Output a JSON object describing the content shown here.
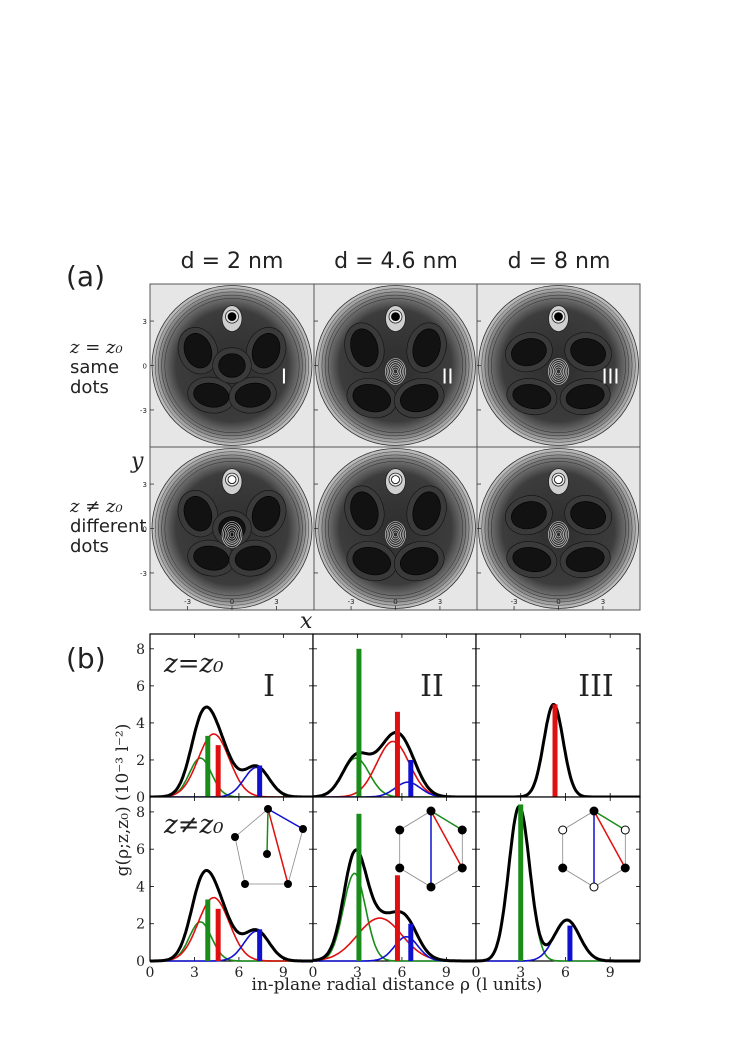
{
  "panel_a": {
    "label": "(a)",
    "columns": [
      "d = 2 nm",
      "d = 4.6 nm",
      "d = 8 nm"
    ],
    "rows": [
      {
        "line1": "z = z₀",
        "line2": "same",
        "line3": "dots"
      },
      {
        "line1": "z ≠ z₀",
        "line2": "different",
        "line3": "dots"
      }
    ],
    "roman": [
      "I",
      "II",
      "III"
    ],
    "xlabel": "x",
    "ylabel": "y",
    "ticks": [
      "-3",
      "0",
      "3"
    ]
  },
  "panel_b": {
    "label": "(b)",
    "row_labels": [
      "z=z₀",
      "z≠z₀"
    ],
    "roman": [
      "I",
      "II",
      "III"
    ],
    "ylabel": "g(ρ;z,z₀) (10⁻³ l⁻²)",
    "xlabel": "in-plane radial distance ρ  (l units)",
    "xticks": [
      "0",
      "3",
      "6",
      "9"
    ],
    "yticks": [
      "0",
      "2",
      "4",
      "6",
      "8"
    ]
  },
  "colors": {
    "total": "#000000",
    "green": "#1a8c1a",
    "red": "#e01010",
    "blue": "#1010d0"
  },
  "chart_data": {
    "type": "line",
    "xlim": [
      0,
      11
    ],
    "ylim": [
      0,
      8.8
    ],
    "panels": [
      {
        "row": 0,
        "col": 0,
        "gaussians": [
          {
            "color": "green",
            "a": 2.1,
            "m": 3.4,
            "s": 0.75
          },
          {
            "color": "red",
            "a": 3.4,
            "m": 4.3,
            "s": 1.05
          },
          {
            "color": "blue",
            "a": 1.6,
            "m": 7.2,
            "s": 0.85
          }
        ],
        "bars": [
          {
            "color": "green",
            "x": 3.9,
            "h": 3.3
          },
          {
            "color": "red",
            "x": 4.6,
            "h": 2.8
          },
          {
            "color": "blue",
            "x": 7.4,
            "h": 1.7
          }
        ]
      },
      {
        "row": 0,
        "col": 1,
        "gaussians": [
          {
            "color": "green",
            "a": 2.1,
            "m": 2.9,
            "s": 0.9
          },
          {
            "color": "red",
            "a": 3.0,
            "m": 5.4,
            "s": 1.1
          },
          {
            "color": "blue",
            "a": 0.8,
            "m": 6.4,
            "s": 0.85
          }
        ],
        "bars": [
          {
            "color": "green",
            "x": 3.1,
            "h": 8.0
          },
          {
            "color": "red",
            "x": 5.7,
            "h": 4.6
          },
          {
            "color": "blue",
            "x": 6.6,
            "h": 2.0
          }
        ]
      },
      {
        "row": 0,
        "col": 2,
        "gaussians": [
          {
            "color": "red",
            "a": 5.0,
            "m": 5.2,
            "s": 0.65
          }
        ],
        "bars": [
          {
            "color": "red",
            "x": 5.3,
            "h": 5.0
          }
        ]
      },
      {
        "row": 1,
        "col": 0,
        "gaussians": [
          {
            "color": "green",
            "a": 2.1,
            "m": 3.4,
            "s": 0.75
          },
          {
            "color": "red",
            "a": 3.4,
            "m": 4.3,
            "s": 1.05
          },
          {
            "color": "blue",
            "a": 1.6,
            "m": 7.2,
            "s": 0.85
          }
        ],
        "bars": [
          {
            "color": "green",
            "x": 3.9,
            "h": 3.3
          },
          {
            "color": "red",
            "x": 4.6,
            "h": 2.8
          },
          {
            "color": "blue",
            "x": 7.4,
            "h": 1.7
          }
        ]
      },
      {
        "row": 1,
        "col": 1,
        "gaussians": [
          {
            "color": "green",
            "a": 4.7,
            "m": 2.8,
            "s": 0.75
          },
          {
            "color": "red",
            "a": 2.3,
            "m": 4.5,
            "s": 1.5
          },
          {
            "color": "blue",
            "a": 1.3,
            "m": 6.3,
            "s": 0.8
          }
        ],
        "bars": [
          {
            "color": "green",
            "x": 3.1,
            "h": 7.9
          },
          {
            "color": "red",
            "x": 5.7,
            "h": 4.6
          },
          {
            "color": "blue",
            "x": 6.6,
            "h": 2.0
          }
        ]
      },
      {
        "row": 1,
        "col": 2,
        "gaussians": [
          {
            "color": "green",
            "a": 8.3,
            "m": 2.9,
            "s": 0.7
          },
          {
            "color": "blue",
            "a": 2.2,
            "m": 6.1,
            "s": 0.85
          }
        ],
        "bars": [
          {
            "color": "green",
            "x": 3.0,
            "h": 8.4
          },
          {
            "color": "blue",
            "x": 6.3,
            "h": 1.9
          }
        ]
      }
    ]
  }
}
